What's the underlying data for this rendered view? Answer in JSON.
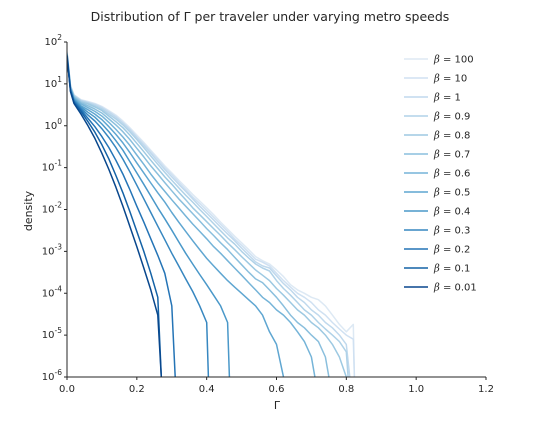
{
  "chart_data": {
    "type": "line",
    "title": "Distribution of Γ per traveler under varying metro speeds",
    "xlabel": "Γ",
    "ylabel": "density",
    "xscale": "linear",
    "yscale": "log",
    "xlim": [
      0.0,
      1.2
    ],
    "ylim": [
      1e-06,
      100
    ],
    "xticks": [
      "0.0",
      "0.2",
      "0.4",
      "0.6",
      "0.8",
      "1.0",
      "1.2"
    ],
    "yticks": [
      {
        "base": "10",
        "exp": "2"
      },
      {
        "base": "10",
        "exp": "1"
      },
      {
        "base": "10",
        "exp": "0"
      },
      {
        "base": "10",
        "exp": "-1"
      },
      {
        "base": "10",
        "exp": "-2"
      },
      {
        "base": "10",
        "exp": "-3"
      },
      {
        "base": "10",
        "exp": "-4"
      },
      {
        "base": "10",
        "exp": "-5"
      },
      {
        "base": "10",
        "exp": "-6"
      }
    ],
    "grid": false,
    "legend_position": "top-right",
    "series": [
      {
        "name": "β = 100",
        "color": "#dde9f4",
        "x": [
          0.0,
          0.01,
          0.02,
          0.04,
          0.06,
          0.08,
          0.1,
          0.12,
          0.14,
          0.16,
          0.18,
          0.2,
          0.22,
          0.24,
          0.26,
          0.28,
          0.3,
          0.32,
          0.34,
          0.36,
          0.38,
          0.4,
          0.42,
          0.44,
          0.46,
          0.48,
          0.5,
          0.52,
          0.54,
          0.56,
          0.58,
          0.6,
          0.62,
          0.64,
          0.66,
          0.68,
          0.7,
          0.72,
          0.74,
          0.76,
          0.78,
          0.8,
          0.82,
          0.823
        ],
        "y": [
          60,
          9,
          5.5,
          4.2,
          3.8,
          3.4,
          2.9,
          2.3,
          1.8,
          1.3,
          0.9,
          0.6,
          0.4,
          0.26,
          0.17,
          0.11,
          0.075,
          0.05,
          0.034,
          0.023,
          0.016,
          0.011,
          0.0075,
          0.005,
          0.0034,
          0.0023,
          0.0016,
          0.0011,
          0.00075,
          0.0006,
          0.0005,
          0.00036,
          0.00025,
          0.00016,
          0.00012,
          0.0001,
          8e-05,
          7e-05,
          5e-05,
          3e-05,
          1.8e-05,
          1.2e-05,
          1.8e-05,
          1e-06
        ]
      },
      {
        "name": "β = 10",
        "color": "#d0e1f2",
        "x": [
          0.0,
          0.01,
          0.02,
          0.04,
          0.06,
          0.08,
          0.1,
          0.12,
          0.14,
          0.16,
          0.18,
          0.2,
          0.22,
          0.24,
          0.26,
          0.28,
          0.3,
          0.32,
          0.34,
          0.36,
          0.38,
          0.4,
          0.42,
          0.44,
          0.46,
          0.48,
          0.5,
          0.52,
          0.54,
          0.56,
          0.58,
          0.6,
          0.62,
          0.64,
          0.66,
          0.68,
          0.7,
          0.72,
          0.74,
          0.76,
          0.78,
          0.8,
          0.82,
          0.823
        ],
        "y": [
          58,
          9,
          5.4,
          4.1,
          3.7,
          3.3,
          2.8,
          2.2,
          1.7,
          1.2,
          0.85,
          0.55,
          0.37,
          0.24,
          0.16,
          0.1,
          0.068,
          0.045,
          0.03,
          0.02,
          0.014,
          0.0095,
          0.0065,
          0.0044,
          0.003,
          0.002,
          0.0014,
          0.00095,
          0.00065,
          0.00055,
          0.00045,
          0.0003,
          0.0002,
          0.00014,
          0.0001,
          8e-05,
          6e-05,
          4e-05,
          3e-05,
          2e-05,
          1.4e-05,
          1e-05,
          8e-06,
          1e-06
        ]
      },
      {
        "name": "β = 1",
        "color": "#c0d9ed",
        "x": [
          0.0,
          0.01,
          0.02,
          0.04,
          0.06,
          0.08,
          0.1,
          0.12,
          0.14,
          0.16,
          0.18,
          0.2,
          0.22,
          0.24,
          0.26,
          0.28,
          0.3,
          0.32,
          0.34,
          0.36,
          0.38,
          0.4,
          0.42,
          0.44,
          0.46,
          0.48,
          0.5,
          0.52,
          0.54,
          0.56,
          0.58,
          0.6,
          0.62,
          0.64,
          0.66,
          0.68,
          0.7,
          0.72,
          0.74,
          0.76,
          0.78,
          0.8,
          0.81
        ],
        "y": [
          56,
          8.8,
          5.3,
          4.0,
          3.6,
          3.2,
          2.7,
          2.1,
          1.6,
          1.15,
          0.8,
          0.52,
          0.34,
          0.22,
          0.14,
          0.09,
          0.06,
          0.04,
          0.027,
          0.018,
          0.012,
          0.0082,
          0.0056,
          0.0038,
          0.0026,
          0.0018,
          0.0012,
          0.00082,
          0.00056,
          0.00045,
          0.0004,
          0.00026,
          0.00017,
          0.00012,
          8e-05,
          6e-05,
          4e-05,
          3e-05,
          2e-05,
          1.5e-05,
          1e-05,
          6e-06,
          1e-06
        ]
      },
      {
        "name": "β = 0.9",
        "color": "#b0d2e8",
        "x": [
          0.0,
          0.01,
          0.02,
          0.04,
          0.06,
          0.08,
          0.1,
          0.12,
          0.14,
          0.16,
          0.18,
          0.2,
          0.22,
          0.24,
          0.26,
          0.28,
          0.3,
          0.32,
          0.34,
          0.36,
          0.38,
          0.4,
          0.42,
          0.44,
          0.46,
          0.48,
          0.5,
          0.52,
          0.54,
          0.56,
          0.58,
          0.6,
          0.62,
          0.64,
          0.66,
          0.68,
          0.7,
          0.72,
          0.74,
          0.76,
          0.78,
          0.8,
          0.805
        ],
        "y": [
          55,
          8.6,
          5.2,
          3.9,
          3.5,
          3.0,
          2.5,
          1.9,
          1.45,
          1.05,
          0.72,
          0.47,
          0.3,
          0.19,
          0.12,
          0.077,
          0.05,
          0.033,
          0.022,
          0.015,
          0.01,
          0.0068,
          0.0046,
          0.0031,
          0.0021,
          0.0015,
          0.001,
          0.0007,
          0.0005,
          0.0004,
          0.00034,
          0.0002,
          0.00013,
          9e-05,
          6e-05,
          4e-05,
          3e-05,
          2e-05,
          1.4e-05,
          1e-05,
          7e-06,
          4e-06,
          1e-06
        ]
      },
      {
        "name": "β = 0.8",
        "color": "#9dc9e2",
        "x": [
          0.0,
          0.01,
          0.02,
          0.04,
          0.06,
          0.08,
          0.1,
          0.12,
          0.14,
          0.16,
          0.18,
          0.2,
          0.22,
          0.24,
          0.26,
          0.28,
          0.3,
          0.32,
          0.34,
          0.36,
          0.38,
          0.4,
          0.42,
          0.44,
          0.46,
          0.48,
          0.5,
          0.52,
          0.54,
          0.56,
          0.58,
          0.6,
          0.62,
          0.64,
          0.66,
          0.68,
          0.7,
          0.72,
          0.74,
          0.76,
          0.78,
          0.8
        ],
        "y": [
          54,
          8.4,
          5.0,
          3.7,
          3.3,
          2.8,
          2.3,
          1.7,
          1.25,
          0.9,
          0.6,
          0.38,
          0.24,
          0.15,
          0.095,
          0.06,
          0.04,
          0.026,
          0.017,
          0.011,
          0.0075,
          0.0051,
          0.0035,
          0.0024,
          0.0016,
          0.0011,
          0.00075,
          0.00052,
          0.00036,
          0.00027,
          0.0002,
          0.00013,
          9e-05,
          6e-05,
          4e-05,
          3e-05,
          2e-05,
          1.5e-05,
          1e-05,
          6e-06,
          3e-06,
          1e-06
        ]
      },
      {
        "name": "β = 0.7",
        "color": "#8abfdd",
        "x": [
          0.0,
          0.01,
          0.02,
          0.04,
          0.06,
          0.08,
          0.1,
          0.12,
          0.14,
          0.16,
          0.18,
          0.2,
          0.22,
          0.24,
          0.26,
          0.28,
          0.3,
          0.32,
          0.34,
          0.36,
          0.38,
          0.4,
          0.42,
          0.44,
          0.46,
          0.48,
          0.5,
          0.52,
          0.54,
          0.56,
          0.58,
          0.6,
          0.62,
          0.64,
          0.66,
          0.68,
          0.7,
          0.72,
          0.74,
          0.75
        ],
        "y": [
          53,
          8.2,
          4.8,
          3.5,
          3.0,
          2.5,
          2.0,
          1.45,
          1.05,
          0.72,
          0.47,
          0.29,
          0.18,
          0.11,
          0.07,
          0.044,
          0.028,
          0.018,
          0.012,
          0.008,
          0.0053,
          0.0035,
          0.0024,
          0.0016,
          0.0011,
          0.00072,
          0.00048,
          0.00032,
          0.00022,
          0.00018,
          0.00012,
          8e-05,
          5e-05,
          3e-05,
          2e-05,
          1.5e-05,
          1e-05,
          7e-06,
          3e-06,
          1e-06
        ]
      },
      {
        "name": "β = 0.6",
        "color": "#75b4d8",
        "x": [
          0.0,
          0.01,
          0.02,
          0.04,
          0.06,
          0.08,
          0.1,
          0.12,
          0.14,
          0.16,
          0.18,
          0.2,
          0.22,
          0.24,
          0.26,
          0.28,
          0.3,
          0.32,
          0.34,
          0.36,
          0.38,
          0.4,
          0.42,
          0.44,
          0.46,
          0.48,
          0.5,
          0.52,
          0.54,
          0.56,
          0.58,
          0.6,
          0.62,
          0.64,
          0.66,
          0.68,
          0.7,
          0.71
        ],
        "y": [
          52,
          8.0,
          4.6,
          3.3,
          2.7,
          2.2,
          1.7,
          1.2,
          0.82,
          0.54,
          0.34,
          0.2,
          0.12,
          0.07,
          0.043,
          0.027,
          0.017,
          0.011,
          0.007,
          0.0045,
          0.003,
          0.002,
          0.0013,
          0.0009,
          0.0006,
          0.0004,
          0.00027,
          0.00018,
          0.00012,
          8e-05,
          6e-05,
          4e-05,
          3e-05,
          2e-05,
          1.2e-05,
          7e-06,
          3e-06,
          1e-06
        ]
      },
      {
        "name": "β = 0.5",
        "color": "#5fa6d1",
        "x": [
          0.0,
          0.01,
          0.02,
          0.04,
          0.06,
          0.08,
          0.1,
          0.12,
          0.14,
          0.16,
          0.18,
          0.2,
          0.22,
          0.24,
          0.26,
          0.28,
          0.3,
          0.32,
          0.34,
          0.36,
          0.38,
          0.4,
          0.42,
          0.44,
          0.46,
          0.48,
          0.5,
          0.52,
          0.54,
          0.56,
          0.58,
          0.6,
          0.62
        ],
        "y": [
          51,
          7.8,
          4.4,
          3.0,
          2.4,
          1.9,
          1.4,
          0.95,
          0.62,
          0.39,
          0.23,
          0.13,
          0.075,
          0.043,
          0.025,
          0.015,
          0.0085,
          0.005,
          0.003,
          0.0018,
          0.0011,
          0.00068,
          0.00045,
          0.0003,
          0.0002,
          0.00014,
          0.0001,
          7e-05,
          5e-05,
          3e-05,
          1.2e-05,
          6e-06,
          1e-06
        ]
      },
      {
        "name": "β = 0.4",
        "color": "#4a98c9",
        "x": [
          0.0,
          0.01,
          0.02,
          0.04,
          0.06,
          0.08,
          0.1,
          0.12,
          0.14,
          0.16,
          0.18,
          0.2,
          0.22,
          0.24,
          0.26,
          0.28,
          0.3,
          0.32,
          0.34,
          0.36,
          0.38,
          0.4,
          0.42,
          0.44,
          0.46,
          0.465
        ],
        "y": [
          50,
          7.5,
          4.2,
          2.8,
          2.1,
          1.6,
          1.1,
          0.72,
          0.44,
          0.26,
          0.14,
          0.075,
          0.04,
          0.021,
          0.011,
          0.006,
          0.0032,
          0.0017,
          0.0009,
          0.0005,
          0.00028,
          0.00016,
          9e-05,
          5e-05,
          2e-05,
          1e-06
        ]
      },
      {
        "name": "β = 0.3",
        "color": "#3787c0",
        "x": [
          0.0,
          0.01,
          0.02,
          0.04,
          0.06,
          0.08,
          0.1,
          0.12,
          0.14,
          0.16,
          0.18,
          0.2,
          0.22,
          0.24,
          0.26,
          0.28,
          0.3,
          0.32,
          0.34,
          0.36,
          0.38,
          0.4,
          0.405
        ],
        "y": [
          49,
          7.2,
          4.0,
          2.6,
          1.8,
          1.3,
          0.85,
          0.52,
          0.3,
          0.16,
          0.08,
          0.038,
          0.018,
          0.0085,
          0.004,
          0.0019,
          0.0009,
          0.00045,
          0.00022,
          0.00011,
          5e-05,
          2e-05,
          1e-06
        ]
      },
      {
        "name": "β = 0.2",
        "color": "#2474b6",
        "x": [
          0.0,
          0.01,
          0.02,
          0.04,
          0.06,
          0.08,
          0.1,
          0.12,
          0.14,
          0.16,
          0.18,
          0.2,
          0.22,
          0.24,
          0.26,
          0.28,
          0.3,
          0.31
        ],
        "y": [
          48,
          7.0,
          3.8,
          2.4,
          1.5,
          0.95,
          0.55,
          0.3,
          0.15,
          0.07,
          0.03,
          0.012,
          0.005,
          0.002,
          0.0008,
          0.0003,
          5e-05,
          1e-06
        ]
      },
      {
        "name": "β = 0.1",
        "color": "#1462a6",
        "x": [
          0.0,
          0.01,
          0.02,
          0.04,
          0.06,
          0.08,
          0.1,
          0.12,
          0.14,
          0.16,
          0.18,
          0.2,
          0.22,
          0.24,
          0.26,
          0.27
        ],
        "y": [
          47,
          6.8,
          3.6,
          2.2,
          1.25,
          0.7,
          0.35,
          0.16,
          0.065,
          0.025,
          0.009,
          0.003,
          0.001,
          0.0003,
          8e-05,
          1e-06
        ]
      },
      {
        "name": "β = 0.01",
        "color": "#08478d",
        "x": [
          0.0,
          0.01,
          0.02,
          0.04,
          0.06,
          0.08,
          0.1,
          0.12,
          0.14,
          0.16,
          0.18,
          0.2,
          0.22,
          0.24,
          0.26,
          0.27
        ],
        "y": [
          46,
          6.5,
          3.4,
          1.9,
          1.0,
          0.5,
          0.22,
          0.09,
          0.034,
          0.012,
          0.004,
          0.0013,
          0.0004,
          0.00012,
          3e-05,
          1e-06
        ]
      }
    ]
  }
}
